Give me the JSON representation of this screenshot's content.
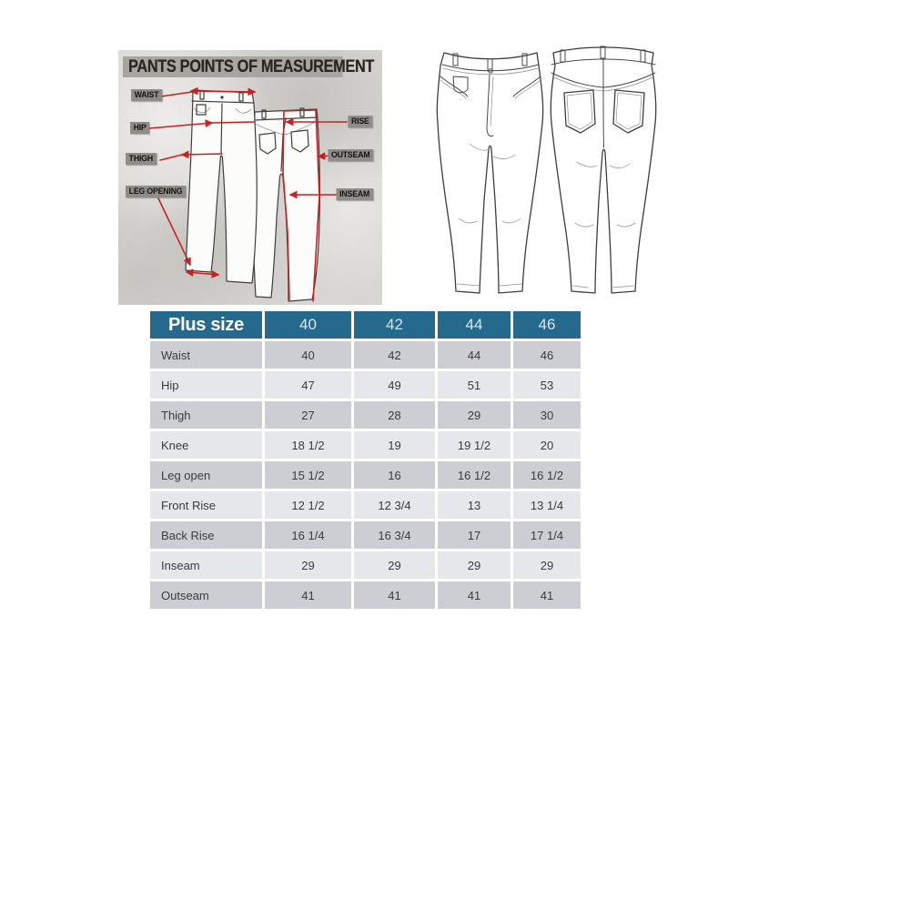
{
  "diagram": {
    "title": "PANTS POINTS OF MEASUREMENT",
    "accent_color": "#c82121",
    "labels": [
      {
        "id": "waist",
        "text": "WAIST"
      },
      {
        "id": "hip",
        "text": "HIP"
      },
      {
        "id": "thigh",
        "text": "THIGH"
      },
      {
        "id": "leg-opening",
        "text": "LEG OPENING"
      },
      {
        "id": "rise",
        "text": "RISE"
      },
      {
        "id": "outseam",
        "text": "OUTSEAM"
      },
      {
        "id": "inseam",
        "text": "INSEAM"
      }
    ]
  },
  "size_chart": {
    "colors": {
      "header_bg": "#256a8c",
      "row_dark": "#cdced3",
      "row_light": "#e6e7ea"
    },
    "header": {
      "label": "Plus size",
      "sizes": [
        "40",
        "42",
        "44",
        "46"
      ]
    },
    "rows": [
      {
        "label": "Waist",
        "values": [
          "40",
          "42",
          "44",
          "46"
        ]
      },
      {
        "label": "Hip",
        "values": [
          "47",
          "49",
          "51",
          "53"
        ]
      },
      {
        "label": "Thigh",
        "values": [
          "27",
          "28",
          "29",
          "30"
        ]
      },
      {
        "label": "Knee",
        "values": [
          "18 1/2",
          "19",
          "19 1/2",
          "20"
        ]
      },
      {
        "label": "Leg open",
        "values": [
          "15 1/2",
          "16",
          "16 1/2",
          "16 1/2"
        ]
      },
      {
        "label": "Front Rise",
        "values": [
          "12 1/2",
          "12 3/4",
          "13",
          "13 1/4"
        ]
      },
      {
        "label": "Back Rise",
        "values": [
          "16 1/4",
          "16 3/4",
          "17",
          "17 1/4"
        ]
      },
      {
        "label": "Inseam",
        "values": [
          "29",
          "29",
          "29",
          "29"
        ]
      },
      {
        "label": "Outseam",
        "values": [
          "41",
          "41",
          "41",
          "41"
        ]
      }
    ]
  }
}
